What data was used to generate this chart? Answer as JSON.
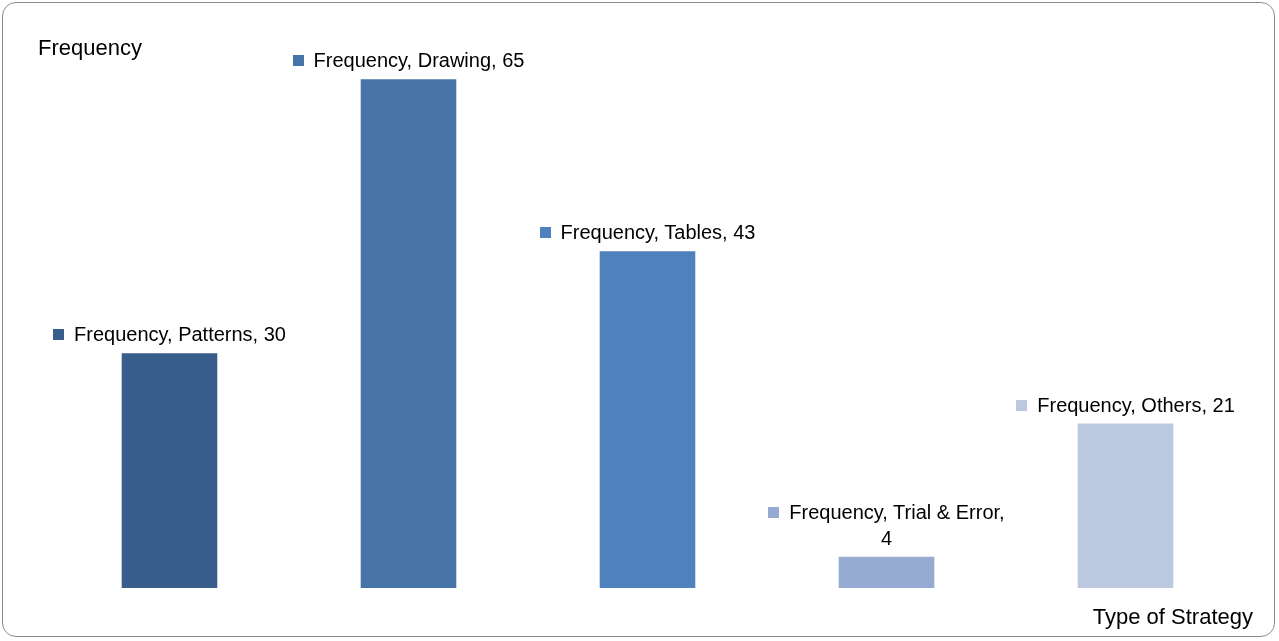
{
  "chart_data": {
    "type": "bar",
    "ylabel": "Frequency",
    "xlabel": "Type of Strategy",
    "categories": [
      null,
      null,
      null,
      null,
      null
    ],
    "values": [
      30,
      65,
      43,
      4,
      21
    ],
    "colors": [
      "#3a5e8c",
      "#4673a8",
      "#4f81bd",
      "#95abd1",
      "#bcc8e0"
    ],
    "value_labels": [
      "Frequency, Patterns, 30",
      "Frequency, Drawing, 65",
      "Frequency, Tables, 43",
      "Frequency, Trial & Error, 4",
      "Frequency, Others, 21"
    ],
    "tick_labels": false,
    "grid": false
  }
}
